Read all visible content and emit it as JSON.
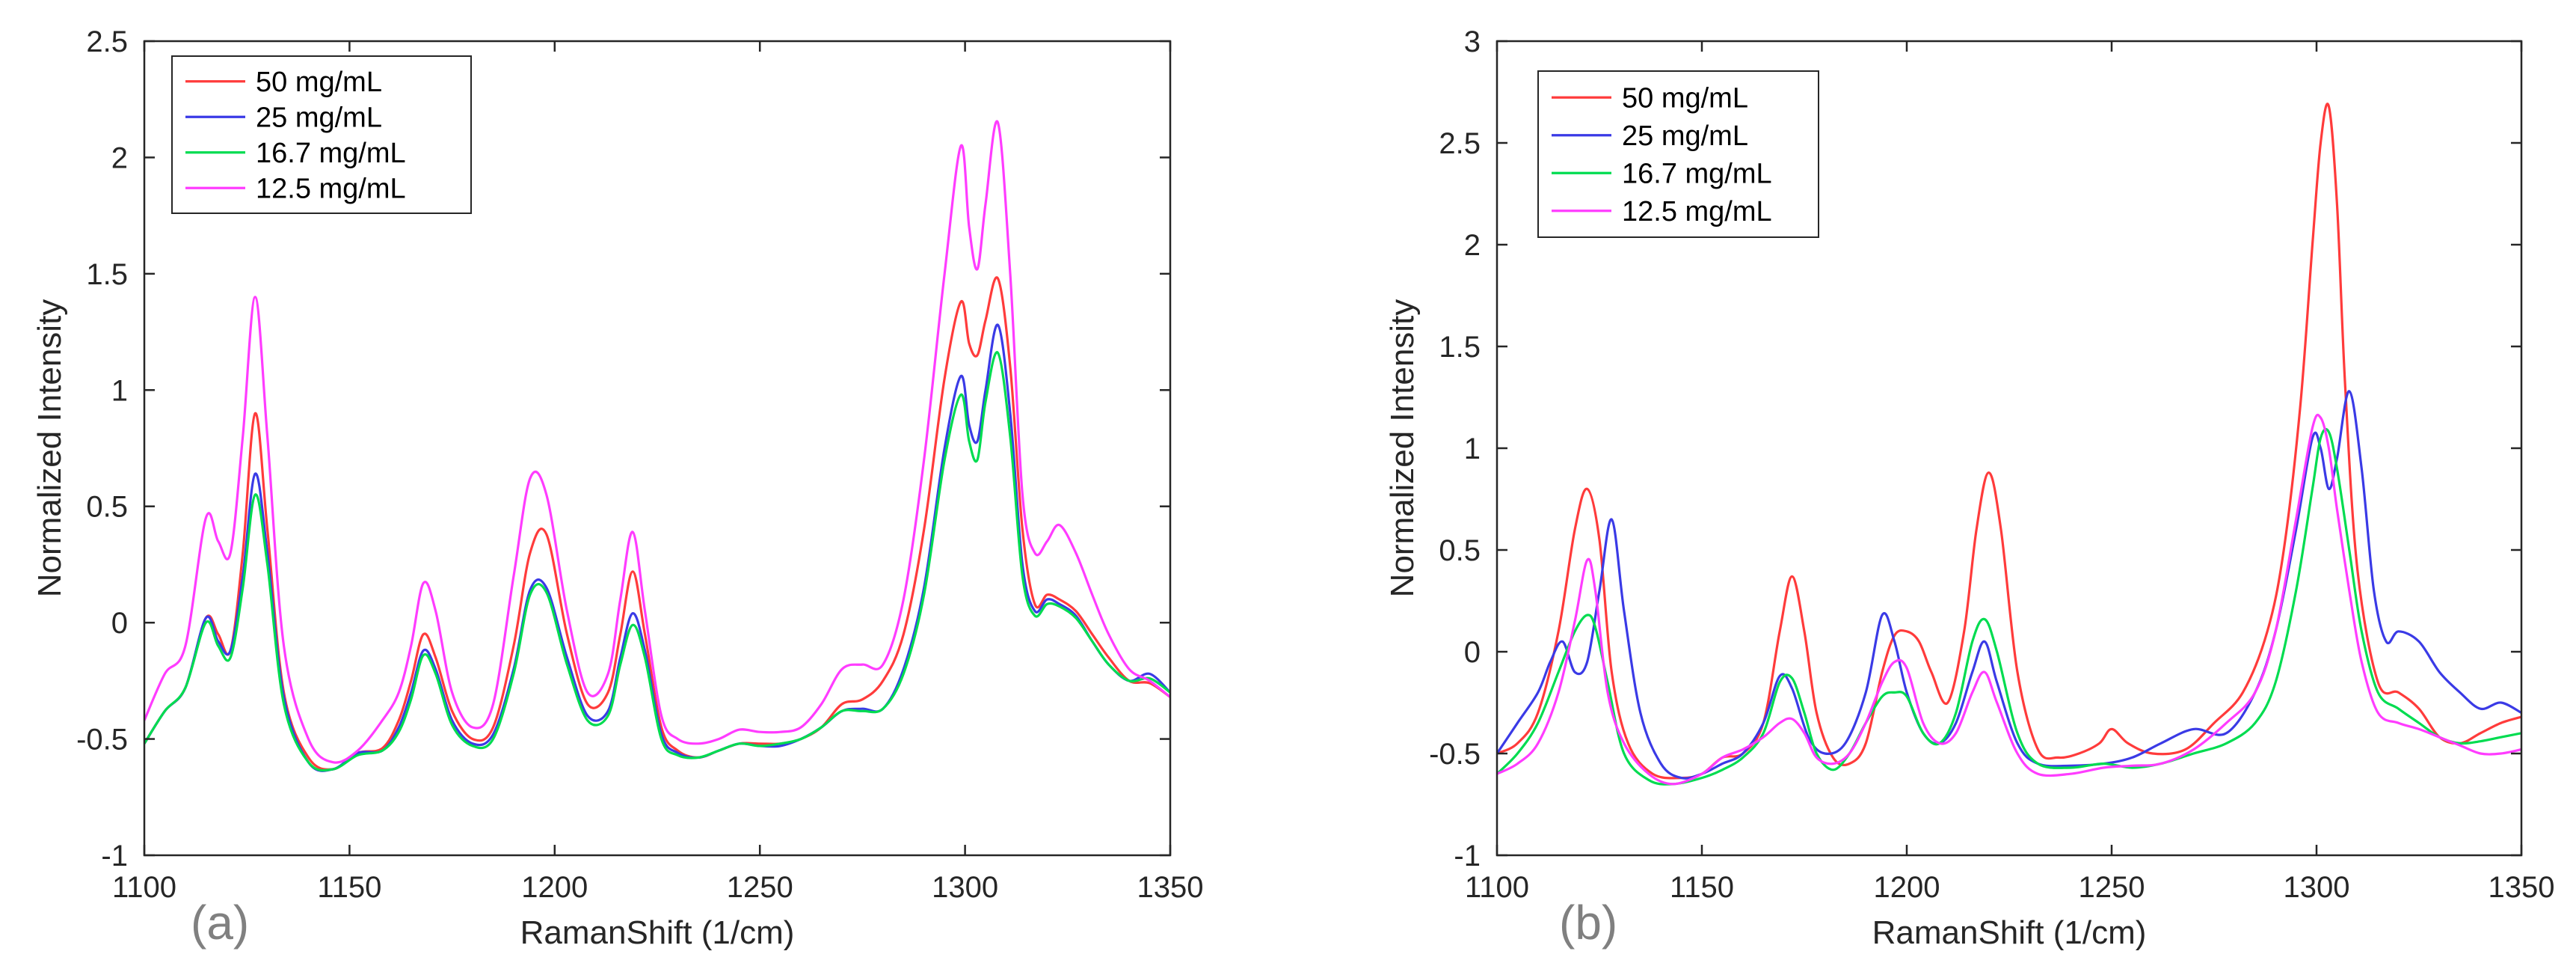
{
  "figure": {
    "panels": [
      "(a)",
      "(b)"
    ]
  },
  "colors": {
    "red": "#ff3b3b",
    "blue": "#3a3ae6",
    "green": "#00dc50",
    "magenta": "#ff3cff",
    "axis": "#262626"
  },
  "chart_data": [
    {
      "type": "line",
      "panel_label": "(a)",
      "xlabel": "RamanShift (1/cm)",
      "ylabel": "Normalized Intensity",
      "xlim": [
        1100,
        1350
      ],
      "ylim": [
        -1,
        2.5
      ],
      "xticks": [
        1100,
        1150,
        1200,
        1250,
        1300,
        1350
      ],
      "yticks": [
        -1,
        -0.5,
        0,
        0.5,
        1,
        1.5,
        2,
        2.5
      ],
      "grid": false,
      "legend_position": "top-left",
      "series": [
        {
          "name": "50 mg/mL",
          "color": "red",
          "x": [
            1100,
            1105,
            1110,
            1115,
            1118,
            1121,
            1124,
            1127,
            1130,
            1134,
            1140,
            1146,
            1152,
            1158,
            1162,
            1165,
            1168,
            1171,
            1175,
            1180,
            1185,
            1190,
            1194,
            1198,
            1203,
            1208,
            1213,
            1216,
            1219,
            1222,
            1226,
            1230,
            1235,
            1240,
            1245,
            1250,
            1255,
            1260,
            1265,
            1270,
            1275,
            1280,
            1285,
            1290,
            1295,
            1299,
            1301,
            1303,
            1305,
            1308,
            1311,
            1314,
            1317,
            1320,
            1323,
            1327,
            1331,
            1335,
            1340,
            1345,
            1350
          ],
          "y": [
            -0.52,
            -0.38,
            -0.28,
            0.02,
            -0.05,
            -0.12,
            0.3,
            0.9,
            0.4,
            -0.3,
            -0.58,
            -0.63,
            -0.56,
            -0.54,
            -0.42,
            -0.25,
            -0.05,
            -0.15,
            -0.38,
            -0.5,
            -0.45,
            -0.1,
            0.3,
            0.38,
            -0.05,
            -0.35,
            -0.3,
            -0.05,
            0.22,
            -0.05,
            -0.45,
            -0.55,
            -0.58,
            -0.55,
            -0.52,
            -0.52,
            -0.52,
            -0.5,
            -0.45,
            -0.35,
            -0.33,
            -0.25,
            -0.05,
            0.4,
            1.05,
            1.38,
            1.2,
            1.15,
            1.3,
            1.48,
            1.1,
            0.4,
            0.08,
            0.12,
            0.1,
            0.05,
            -0.05,
            -0.15,
            -0.25,
            -0.26,
            -0.32
          ]
        },
        {
          "name": "25 mg/mL",
          "color": "blue",
          "x": [
            1100,
            1105,
            1110,
            1115,
            1118,
            1121,
            1124,
            1127,
            1130,
            1134,
            1140,
            1146,
            1152,
            1158,
            1162,
            1165,
            1168,
            1171,
            1175,
            1180,
            1185,
            1190,
            1194,
            1198,
            1203,
            1208,
            1213,
            1216,
            1219,
            1222,
            1226,
            1230,
            1235,
            1240,
            1245,
            1250,
            1255,
            1260,
            1265,
            1270,
            1275,
            1280,
            1285,
            1290,
            1295,
            1299,
            1301,
            1303,
            1305,
            1308,
            1311,
            1314,
            1317,
            1320,
            1323,
            1327,
            1331,
            1335,
            1340,
            1345,
            1350
          ],
          "y": [
            -0.52,
            -0.38,
            -0.28,
            0.02,
            -0.08,
            -0.12,
            0.2,
            0.64,
            0.3,
            -0.32,
            -0.6,
            -0.63,
            -0.56,
            -0.55,
            -0.45,
            -0.3,
            -0.12,
            -0.2,
            -0.42,
            -0.52,
            -0.48,
            -0.2,
            0.14,
            0.15,
            -0.15,
            -0.4,
            -0.38,
            -0.15,
            0.04,
            -0.12,
            -0.48,
            -0.56,
            -0.58,
            -0.55,
            -0.52,
            -0.53,
            -0.53,
            -0.5,
            -0.45,
            -0.38,
            -0.37,
            -0.37,
            -0.2,
            0.15,
            0.75,
            1.06,
            0.85,
            0.78,
            1.0,
            1.28,
            0.9,
            0.25,
            0.05,
            0.1,
            0.08,
            0.03,
            -0.08,
            -0.18,
            -0.25,
            -0.22,
            -0.3
          ]
        },
        {
          "name": "16.7 mg/mL",
          "color": "green",
          "x": [
            1100,
            1105,
            1110,
            1115,
            1118,
            1121,
            1124,
            1127,
            1130,
            1134,
            1140,
            1146,
            1152,
            1158,
            1162,
            1165,
            1168,
            1171,
            1175,
            1180,
            1185,
            1190,
            1194,
            1198,
            1203,
            1208,
            1213,
            1216,
            1219,
            1222,
            1226,
            1230,
            1235,
            1240,
            1245,
            1250,
            1255,
            1260,
            1265,
            1270,
            1275,
            1280,
            1285,
            1290,
            1295,
            1299,
            1301,
            1303,
            1305,
            1308,
            1311,
            1314,
            1317,
            1320,
            1323,
            1327,
            1331,
            1335,
            1340,
            1345,
            1350
          ],
          "y": [
            -0.52,
            -0.38,
            -0.28,
            0.0,
            -0.1,
            -0.15,
            0.15,
            0.55,
            0.25,
            -0.35,
            -0.6,
            -0.63,
            -0.57,
            -0.55,
            -0.47,
            -0.33,
            -0.14,
            -0.22,
            -0.44,
            -0.53,
            -0.5,
            -0.22,
            0.12,
            0.13,
            -0.18,
            -0.42,
            -0.4,
            -0.18,
            -0.01,
            -0.15,
            -0.5,
            -0.57,
            -0.58,
            -0.55,
            -0.52,
            -0.53,
            -0.52,
            -0.5,
            -0.45,
            -0.38,
            -0.38,
            -0.37,
            -0.22,
            0.12,
            0.7,
            0.98,
            0.78,
            0.7,
            0.95,
            1.16,
            0.8,
            0.2,
            0.03,
            0.08,
            0.07,
            0.02,
            -0.08,
            -0.18,
            -0.25,
            -0.24,
            -0.3
          ]
        },
        {
          "name": "12.5 mg/mL",
          "color": "magenta",
          "x": [
            1100,
            1105,
            1110,
            1115,
            1118,
            1121,
            1124,
            1127,
            1130,
            1134,
            1140,
            1146,
            1152,
            1158,
            1162,
            1165,
            1168,
            1171,
            1175,
            1180,
            1185,
            1190,
            1194,
            1198,
            1203,
            1208,
            1213,
            1216,
            1219,
            1222,
            1226,
            1230,
            1235,
            1240,
            1245,
            1250,
            1255,
            1260,
            1265,
            1270,
            1275,
            1280,
            1285,
            1290,
            1295,
            1299,
            1301,
            1303,
            1305,
            1308,
            1311,
            1314,
            1317,
            1320,
            1323,
            1327,
            1331,
            1335,
            1340,
            1345,
            1350
          ],
          "y": [
            -0.42,
            -0.22,
            -0.1,
            0.45,
            0.35,
            0.3,
            0.8,
            1.4,
            0.8,
            -0.1,
            -0.5,
            -0.6,
            -0.55,
            -0.42,
            -0.3,
            -0.1,
            0.17,
            0.05,
            -0.3,
            -0.45,
            -0.35,
            0.2,
            0.62,
            0.55,
            0.05,
            -0.3,
            -0.22,
            0.1,
            0.39,
            0.05,
            -0.4,
            -0.5,
            -0.52,
            -0.5,
            -0.46,
            -0.47,
            -0.47,
            -0.45,
            -0.35,
            -0.2,
            -0.18,
            -0.18,
            0.1,
            0.7,
            1.5,
            2.05,
            1.7,
            1.52,
            1.8,
            2.15,
            1.5,
            0.55,
            0.3,
            0.35,
            0.42,
            0.3,
            0.12,
            -0.05,
            -0.2,
            -0.25,
            -0.32
          ]
        }
      ]
    },
    {
      "type": "line",
      "panel_label": "(b)",
      "xlabel": "RamanShift (1/cm)",
      "ylabel": "Normalized Intensity",
      "xlim": [
        1100,
        1350
      ],
      "ylim": [
        -1,
        3
      ],
      "xticks": [
        1100,
        1150,
        1200,
        1250,
        1300,
        1350
      ],
      "yticks": [
        -1,
        -0.5,
        0,
        0.5,
        1,
        1.5,
        2,
        2.5,
        3
      ],
      "grid": false,
      "legend_position": "top-left",
      "series": [
        {
          "name": "50 mg/mL",
          "color": "red",
          "x": [
            1100,
            1105,
            1110,
            1115,
            1119,
            1122,
            1125,
            1128,
            1132,
            1138,
            1145,
            1150,
            1155,
            1160,
            1165,
            1169,
            1172,
            1175,
            1178,
            1182,
            1186,
            1190,
            1194,
            1197,
            1200,
            1203,
            1206,
            1210,
            1214,
            1217,
            1220,
            1223,
            1227,
            1232,
            1237,
            1242,
            1247,
            1250,
            1254,
            1260,
            1268,
            1275,
            1282,
            1288,
            1292,
            1296,
            1299,
            1301,
            1303,
            1305,
            1307,
            1310,
            1315,
            1320,
            1325,
            1330,
            1335,
            1340,
            1345,
            1350
          ],
          "y": [
            -0.5,
            -0.45,
            -0.3,
            0.1,
            0.6,
            0.8,
            0.55,
            -0.1,
            -0.45,
            -0.6,
            -0.62,
            -0.6,
            -0.52,
            -0.5,
            -0.35,
            0.1,
            0.37,
            0.1,
            -0.3,
            -0.52,
            -0.55,
            -0.45,
            -0.1,
            0.08,
            0.1,
            0.05,
            -0.1,
            -0.25,
            0.1,
            0.6,
            0.88,
            0.6,
            -0.1,
            -0.48,
            -0.52,
            -0.5,
            -0.45,
            -0.38,
            -0.45,
            -0.5,
            -0.48,
            -0.35,
            -0.2,
            0.1,
            0.5,
            1.2,
            2.0,
            2.5,
            2.68,
            2.2,
            1.3,
            0.4,
            -0.15,
            -0.2,
            -0.28,
            -0.42,
            -0.45,
            -0.4,
            -0.35,
            -0.32
          ]
        },
        {
          "name": "25 mg/mL",
          "color": "blue",
          "x": [
            1100,
            1105,
            1110,
            1113,
            1116,
            1119,
            1122,
            1125,
            1128,
            1131,
            1135,
            1140,
            1145,
            1150,
            1155,
            1160,
            1165,
            1169,
            1172,
            1176,
            1180,
            1185,
            1190,
            1194,
            1197,
            1200,
            1204,
            1208,
            1212,
            1216,
            1219,
            1222,
            1227,
            1232,
            1240,
            1248,
            1255,
            1262,
            1270,
            1278,
            1285,
            1290,
            1295,
            1299,
            1301,
            1303,
            1305,
            1308,
            1311,
            1314,
            1317,
            1320,
            1325,
            1330,
            1335,
            1340,
            1345,
            1350
          ],
          "y": [
            -0.5,
            -0.35,
            -0.2,
            -0.05,
            0.05,
            -0.1,
            -0.05,
            0.3,
            0.65,
            0.2,
            -0.3,
            -0.55,
            -0.62,
            -0.6,
            -0.55,
            -0.5,
            -0.35,
            -0.12,
            -0.18,
            -0.42,
            -0.5,
            -0.45,
            -0.2,
            0.18,
            0.05,
            -0.2,
            -0.4,
            -0.45,
            -0.35,
            -0.1,
            0.05,
            -0.15,
            -0.45,
            -0.55,
            -0.56,
            -0.55,
            -0.52,
            -0.45,
            -0.38,
            -0.4,
            -0.2,
            0.1,
            0.6,
            1.05,
            1.0,
            0.8,
            0.95,
            1.28,
            0.9,
            0.3,
            0.05,
            0.1,
            0.05,
            -0.1,
            -0.2,
            -0.28,
            -0.25,
            -0.3
          ]
        },
        {
          "name": "16.7 mg/mL",
          "color": "green",
          "x": [
            1100,
            1105,
            1110,
            1115,
            1119,
            1122,
            1124,
            1127,
            1131,
            1137,
            1143,
            1150,
            1155,
            1160,
            1165,
            1169,
            1172,
            1175,
            1178,
            1182,
            1186,
            1190,
            1194,
            1197,
            1200,
            1204,
            1208,
            1212,
            1216,
            1219,
            1222,
            1227,
            1232,
            1240,
            1248,
            1255,
            1262,
            1270,
            1278,
            1285,
            1290,
            1295,
            1299,
            1301,
            1303,
            1305,
            1308,
            1311,
            1315,
            1320,
            1325,
            1330,
            1335,
            1340,
            1345,
            1350
          ],
          "y": [
            -0.6,
            -0.5,
            -0.35,
            -0.1,
            0.1,
            0.18,
            0.12,
            -0.15,
            -0.5,
            -0.63,
            -0.65,
            -0.62,
            -0.58,
            -0.52,
            -0.4,
            -0.15,
            -0.13,
            -0.3,
            -0.5,
            -0.58,
            -0.5,
            -0.35,
            -0.22,
            -0.2,
            -0.22,
            -0.4,
            -0.45,
            -0.3,
            0.05,
            0.16,
            0.0,
            -0.4,
            -0.55,
            -0.57,
            -0.55,
            -0.57,
            -0.55,
            -0.5,
            -0.45,
            -0.35,
            -0.15,
            0.3,
            0.8,
            1.05,
            1.08,
            0.9,
            0.5,
            0.1,
            -0.2,
            -0.28,
            -0.35,
            -0.42,
            -0.45,
            -0.44,
            -0.42,
            -0.4
          ]
        },
        {
          "name": "12.5 mg/mL",
          "color": "magenta",
          "x": [
            1100,
            1105,
            1110,
            1115,
            1119,
            1122,
            1124,
            1127,
            1131,
            1137,
            1143,
            1150,
            1155,
            1160,
            1165,
            1169,
            1172,
            1175,
            1178,
            1182,
            1186,
            1190,
            1194,
            1197,
            1200,
            1204,
            1208,
            1212,
            1216,
            1219,
            1222,
            1227,
            1232,
            1240,
            1248,
            1255,
            1262,
            1270,
            1278,
            1285,
            1290,
            1295,
            1299,
            1301,
            1303,
            1305,
            1308,
            1311,
            1315,
            1320,
            1325,
            1330,
            1335,
            1340,
            1345,
            1350
          ],
          "y": [
            -0.6,
            -0.55,
            -0.45,
            -0.2,
            0.15,
            0.45,
            0.3,
            -0.2,
            -0.45,
            -0.6,
            -0.65,
            -0.6,
            -0.52,
            -0.48,
            -0.42,
            -0.35,
            -0.33,
            -0.4,
            -0.52,
            -0.55,
            -0.5,
            -0.35,
            -0.15,
            -0.05,
            -0.08,
            -0.35,
            -0.45,
            -0.4,
            -0.2,
            -0.1,
            -0.25,
            -0.5,
            -0.6,
            -0.6,
            -0.57,
            -0.56,
            -0.55,
            -0.48,
            -0.35,
            -0.2,
            0.1,
            0.65,
            1.1,
            1.15,
            1.0,
            0.7,
            0.3,
            -0.05,
            -0.3,
            -0.35,
            -0.38,
            -0.42,
            -0.46,
            -0.5,
            -0.5,
            -0.48
          ]
        }
      ]
    }
  ]
}
